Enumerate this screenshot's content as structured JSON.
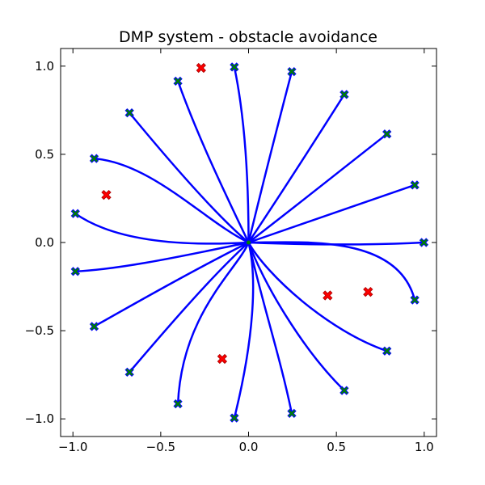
{
  "chart_data": {
    "type": "line",
    "title": "DMP system - obstacle avoidance",
    "xlabel": "",
    "ylabel": "",
    "xlim": [
      -1.07,
      1.07
    ],
    "ylim": [
      -1.1,
      1.1
    ],
    "grid": false,
    "legend": "none",
    "xticks": [
      -1.0,
      -0.5,
      0.0,
      0.5,
      1.0
    ],
    "yticks": [
      -1.0,
      -0.5,
      0.0,
      0.5,
      1.0
    ],
    "xtick_labels": [
      "−1.0",
      "−0.5",
      "0.0",
      "0.5",
      "1.0"
    ],
    "ytick_labels": [
      "−1.0",
      "−0.5",
      "0.0",
      "0.5",
      "1.0"
    ],
    "colors": {
      "trajectory": "#0000ff",
      "goal_fill": "#008000",
      "goal_edge": "#0000ff",
      "obstacle_fill": "#ff0000",
      "obstacle_edge": "#b00000"
    },
    "start": [
      0.0,
      0.0
    ],
    "goals": [
      [
        0.998,
        0.0
      ],
      [
        0.946,
        0.326
      ],
      [
        0.788,
        0.615
      ],
      [
        0.545,
        0.839
      ],
      [
        0.246,
        0.969
      ],
      [
        -0.081,
        0.995
      ],
      [
        -0.402,
        0.915
      ],
      [
        -0.678,
        0.735
      ],
      [
        -0.879,
        0.476
      ],
      [
        -0.986,
        0.164
      ],
      [
        -0.986,
        -0.164
      ],
      [
        -0.879,
        -0.476
      ],
      [
        -0.678,
        -0.735
      ],
      [
        -0.402,
        -0.915
      ],
      [
        -0.081,
        -0.995
      ],
      [
        0.246,
        -0.969
      ],
      [
        0.545,
        -0.839
      ],
      [
        0.788,
        -0.615
      ],
      [
        0.946,
        -0.326
      ]
    ],
    "trajectories": [
      [
        [
          0,
          0
        ],
        [
          0.5,
          -0.02
        ],
        [
          0.8,
          -0.01
        ],
        [
          0.998,
          0.0
        ]
      ],
      [
        [
          0,
          0
        ],
        [
          0.35,
          0.12
        ],
        [
          0.7,
          0.24
        ],
        [
          0.946,
          0.326
        ]
      ],
      [
        [
          0,
          0
        ],
        [
          0.3,
          0.23
        ],
        [
          0.55,
          0.43
        ],
        [
          0.788,
          0.615
        ]
      ],
      [
        [
          0,
          0
        ],
        [
          0.2,
          0.3
        ],
        [
          0.38,
          0.58
        ],
        [
          0.545,
          0.839
        ]
      ],
      [
        [
          0,
          0
        ],
        [
          0.09,
          0.37
        ],
        [
          0.17,
          0.68
        ],
        [
          0.246,
          0.969
        ]
      ],
      [
        [
          0,
          0
        ],
        [
          0.0,
          0.5
        ],
        [
          -0.04,
          0.8
        ],
        [
          -0.081,
          0.995
        ]
      ],
      [
        [
          0,
          0
        ],
        [
          -0.12,
          0.25
        ],
        [
          -0.29,
          0.6
        ],
        [
          -0.402,
          0.915
        ]
      ],
      [
        [
          0,
          0
        ],
        [
          -0.18,
          0.15
        ],
        [
          -0.45,
          0.46
        ],
        [
          -0.678,
          0.735
        ]
      ],
      [
        [
          0,
          0
        ],
        [
          -0.25,
          0.12
        ],
        [
          -0.55,
          0.45
        ],
        [
          -0.879,
          0.476
        ]
      ],
      [
        [
          0,
          0
        ],
        [
          -0.35,
          -0.02
        ],
        [
          -0.75,
          0.0
        ],
        [
          -0.986,
          0.164
        ]
      ],
      [
        [
          0,
          0
        ],
        [
          -0.3,
          -0.06
        ],
        [
          -0.7,
          -0.15
        ],
        [
          -0.986,
          -0.164
        ]
      ],
      [
        [
          0,
          0
        ],
        [
          -0.3,
          -0.15
        ],
        [
          -0.62,
          -0.33
        ],
        [
          -0.879,
          -0.476
        ]
      ],
      [
        [
          0,
          0
        ],
        [
          -0.2,
          -0.18
        ],
        [
          -0.46,
          -0.48
        ],
        [
          -0.678,
          -0.735
        ]
      ],
      [
        [
          0,
          0
        ],
        [
          -0.06,
          -0.15
        ],
        [
          -0.38,
          -0.4
        ],
        [
          -0.402,
          -0.915
        ]
      ],
      [
        [
          0,
          0
        ],
        [
          0.05,
          -0.2
        ],
        [
          0.03,
          -0.55
        ],
        [
          -0.081,
          -0.995
        ]
      ],
      [
        [
          0,
          0
        ],
        [
          0.08,
          -0.35
        ],
        [
          0.18,
          -0.65
        ],
        [
          0.246,
          -0.969
        ]
      ],
      [
        [
          0,
          0
        ],
        [
          0.08,
          -0.22
        ],
        [
          0.3,
          -0.6
        ],
        [
          0.545,
          -0.839
        ]
      ],
      [
        [
          0,
          0
        ],
        [
          0.1,
          -0.18
        ],
        [
          0.45,
          -0.5
        ],
        [
          0.788,
          -0.615
        ]
      ],
      [
        [
          0,
          0
        ],
        [
          0.3,
          0.0
        ],
        [
          0.85,
          0.05
        ],
        [
          0.946,
          -0.326
        ]
      ]
    ],
    "obstacles": [
      [
        -0.27,
        0.99
      ],
      [
        -0.81,
        0.27
      ],
      [
        0.45,
        -0.3
      ],
      [
        0.68,
        -0.28
      ],
      [
        -0.15,
        -0.66
      ]
    ]
  }
}
